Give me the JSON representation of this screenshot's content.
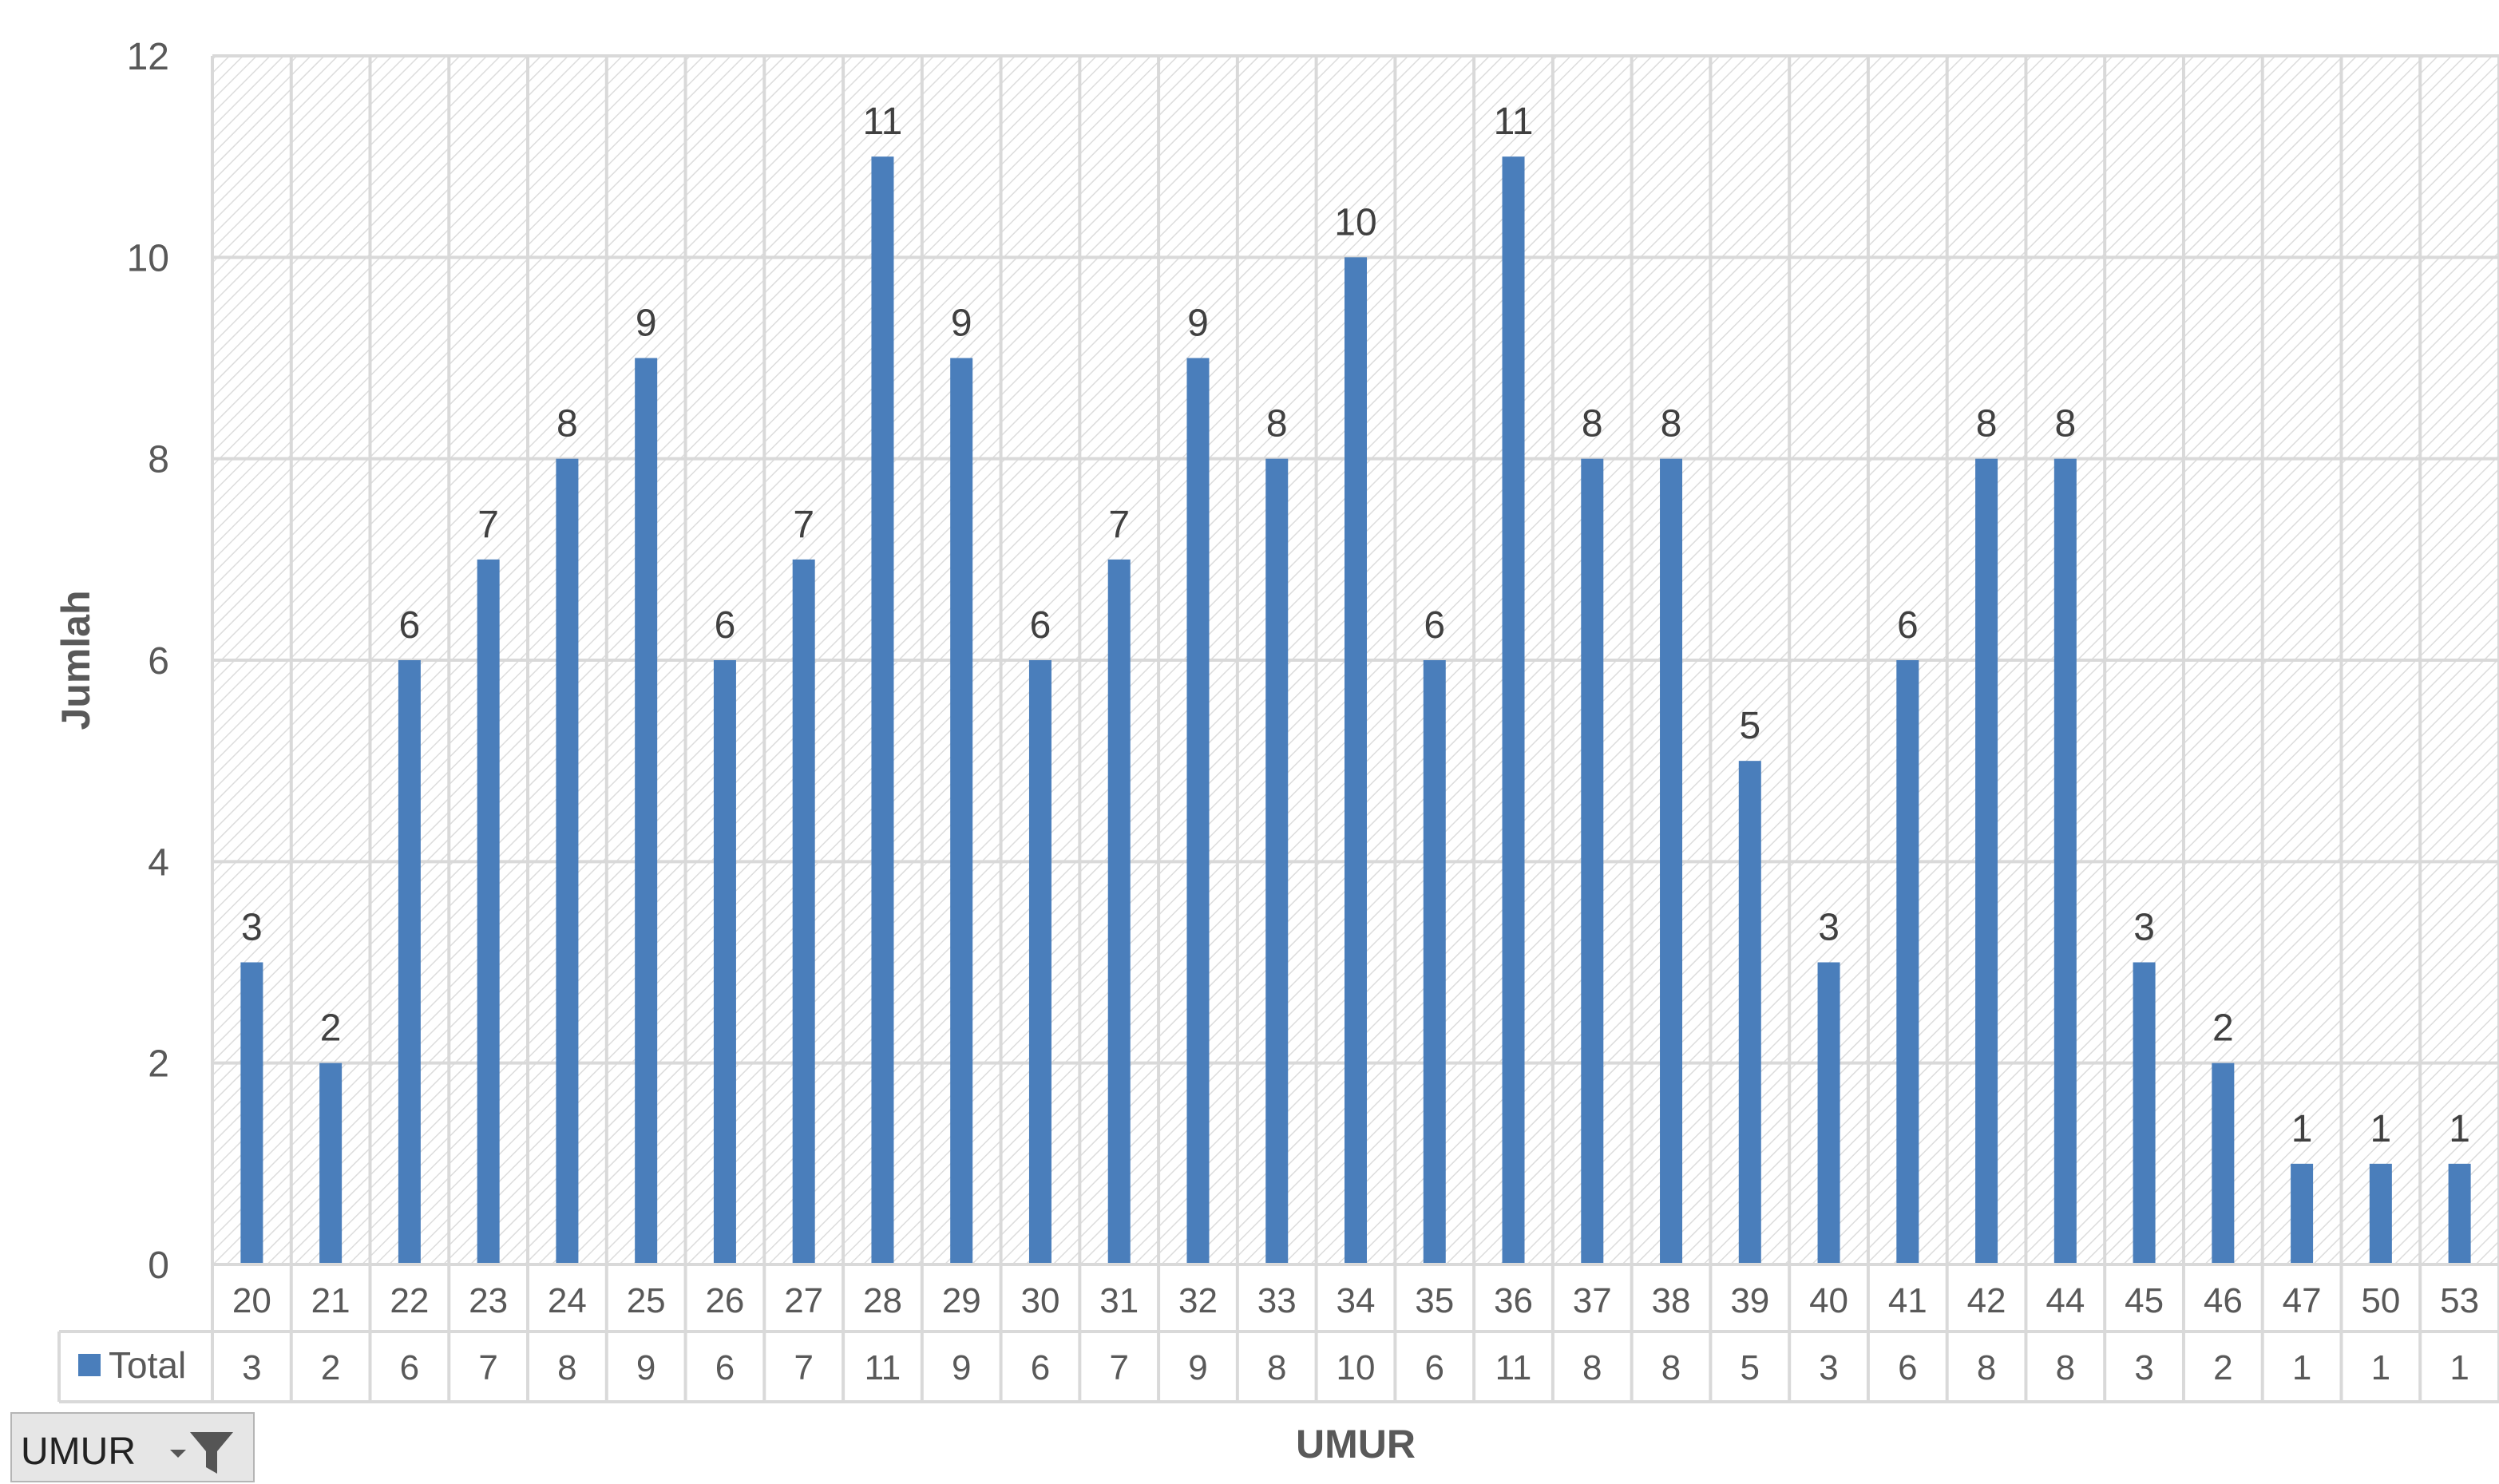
{
  "chart_data": {
    "type": "bar",
    "categories": [
      "20",
      "21",
      "22",
      "23",
      "24",
      "25",
      "26",
      "27",
      "28",
      "29",
      "30",
      "31",
      "32",
      "33",
      "34",
      "35",
      "36",
      "37",
      "38",
      "39",
      "40",
      "41",
      "42",
      "44",
      "45",
      "46",
      "47",
      "50",
      "53"
    ],
    "series": [
      {
        "name": "Total",
        "values": [
          3,
          2,
          6,
          7,
          8,
          9,
          6,
          7,
          11,
          9,
          6,
          7,
          9,
          8,
          10,
          6,
          11,
          8,
          8,
          5,
          3,
          6,
          8,
          8,
          3,
          2,
          1,
          1,
          1
        ],
        "color": "#4a7ebb"
      }
    ],
    "xlabel": "UMUR",
    "ylabel": "Jumlah",
    "ylim": [
      0,
      12
    ],
    "yticks": [
      0,
      2,
      4,
      6,
      8,
      10,
      12
    ],
    "grid": true,
    "data_labels": true,
    "data_table": true,
    "legend": "in data table"
  },
  "filter_button": {
    "label": "UMUR",
    "icon": "filter-funnel-icon"
  },
  "colors": {
    "bar": "#4a7ebb",
    "grid": "#d9d9d9",
    "hatch": "#dcdcdc",
    "text": "#595959"
  }
}
